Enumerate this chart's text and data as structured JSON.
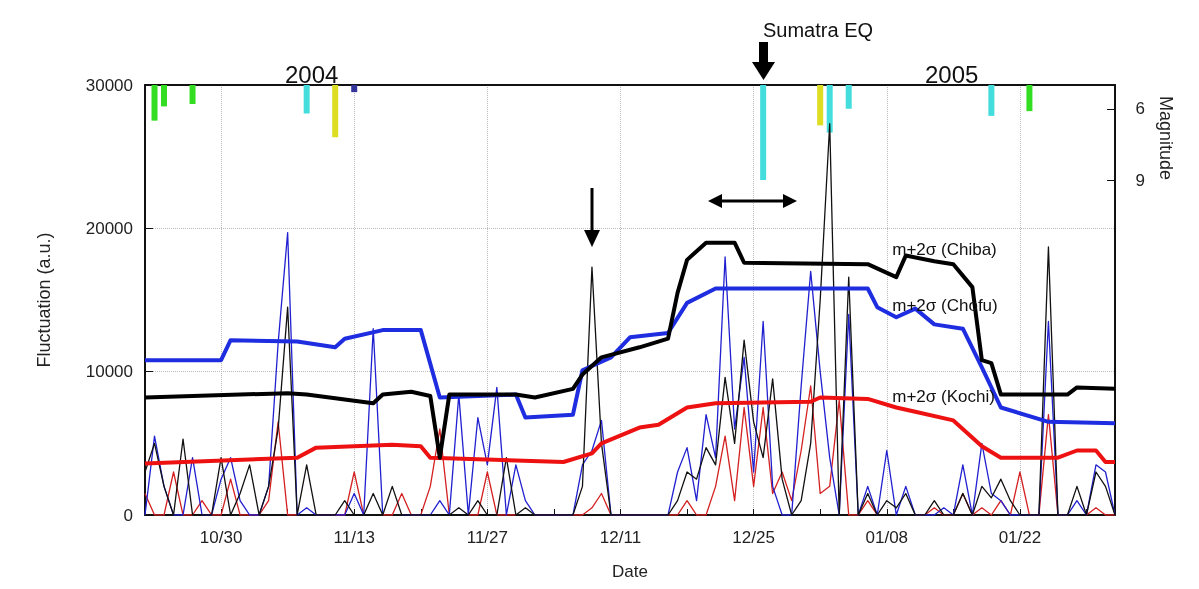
{
  "chart_data": {
    "type": "line",
    "xlabel": "Date",
    "ylabel": "Fluctuation (a.u.)",
    "y2label": "Magnitude",
    "annotations": [
      "2004",
      "2005",
      "Sumatra EQ"
    ],
    "xlim": [
      "2004-10-22",
      "2005-02-01"
    ],
    "xticks": [
      {
        "value": "2004-10-30",
        "label": "10/30"
      },
      {
        "value": "2004-11-06",
        "label": null
      },
      {
        "value": "2004-11-13",
        "label": "11/13"
      },
      {
        "value": "2004-11-20",
        "label": null
      },
      {
        "value": "2004-11-27",
        "label": "11/27"
      },
      {
        "value": "2004-12-04",
        "label": null
      },
      {
        "value": "2004-12-11",
        "label": "12/11"
      },
      {
        "value": "2004-12-18",
        "label": null
      },
      {
        "value": "2004-12-25",
        "label": "12/25"
      },
      {
        "value": "2005-01-01",
        "label": null
      },
      {
        "value": "2005-01-08",
        "label": "01/08"
      },
      {
        "value": "2005-01-15",
        "label": null
      },
      {
        "value": "2005-01-22",
        "label": "01/22"
      },
      {
        "value": "2005-01-29",
        "label": null
      }
    ],
    "ylim": [
      0,
      30000
    ],
    "yticks": [
      0,
      10000,
      20000,
      30000
    ],
    "y2lim": [
      23.1,
      5
    ],
    "y2ticks": [
      6,
      9
    ],
    "grid": true,
    "x": [
      "2004-10-22",
      "2004-10-23",
      "2004-10-24",
      "2004-10-25",
      "2004-10-26",
      "2004-10-27",
      "2004-10-28",
      "2004-10-29",
      "2004-10-30",
      "2004-10-31",
      "2004-11-01",
      "2004-11-02",
      "2004-11-03",
      "2004-11-04",
      "2004-11-05",
      "2004-11-06",
      "2004-11-07",
      "2004-11-08",
      "2004-11-09",
      "2004-11-10",
      "2004-11-11",
      "2004-11-12",
      "2004-11-13",
      "2004-11-14",
      "2004-11-15",
      "2004-11-16",
      "2004-11-17",
      "2004-11-18",
      "2004-11-19",
      "2004-11-20",
      "2004-11-21",
      "2004-11-22",
      "2004-11-23",
      "2004-11-24",
      "2004-11-25",
      "2004-11-26",
      "2004-11-27",
      "2004-11-28",
      "2004-11-29",
      "2004-11-30",
      "2004-12-01",
      "2004-12-02",
      "2004-12-03",
      "2004-12-04",
      "2004-12-05",
      "2004-12-06",
      "2004-12-07",
      "2004-12-08",
      "2004-12-09",
      "2004-12-10",
      "2004-12-11",
      "2004-12-12",
      "2004-12-13",
      "2004-12-14",
      "2004-12-15",
      "2004-12-16",
      "2004-12-17",
      "2004-12-18",
      "2004-12-19",
      "2004-12-20",
      "2004-12-21",
      "2004-12-22",
      "2004-12-23",
      "2004-12-24",
      "2004-12-25",
      "2004-12-26",
      "2004-12-27",
      "2004-12-28",
      "2004-12-29",
      "2004-12-30",
      "2004-12-31",
      "2005-01-01",
      "2005-01-02",
      "2005-01-03",
      "2005-01-04",
      "2005-01-05",
      "2005-01-06",
      "2005-01-07",
      "2005-01-08",
      "2005-01-09",
      "2005-01-10",
      "2005-01-11",
      "2005-01-12",
      "2005-01-13",
      "2005-01-14",
      "2005-01-15",
      "2005-01-16",
      "2005-01-17",
      "2005-01-18",
      "2005-01-19",
      "2005-01-20",
      "2005-01-21",
      "2005-01-22",
      "2005-01-23",
      "2005-01-24",
      "2005-01-25",
      "2005-01-26",
      "2005-01-27",
      "2005-01-28",
      "2005-01-29",
      "2005-01-30",
      "2005-01-31",
      "2005-02-01"
    ],
    "series": [
      {
        "color": "#d42020",
        "values": [
          1500,
          0,
          0,
          3000,
          0,
          0,
          1000,
          0,
          0,
          2500,
          0,
          0,
          0,
          1000,
          6500,
          0,
          0,
          null,
          0,
          0,
          0,
          0,
          3000,
          0,
          null,
          0,
          0,
          1500,
          0,
          0,
          2000,
          6000,
          0,
          null,
          0,
          0,
          3000,
          0,
          0,
          0,
          null,
          0,
          0,
          0,
          0,
          0,
          0,
          500,
          1500,
          0,
          0,
          0,
          0,
          0,
          0,
          0,
          0,
          1000,
          0,
          0,
          2000,
          5500,
          1000,
          7500,
          2000,
          7500,
          1500,
          3000,
          1000,
          4500,
          9000,
          1500,
          2000,
          8000,
          0,
          0,
          1000,
          0,
          null,
          null,
          null,
          0,
          0,
          500,
          0,
          0,
          1500,
          0,
          500,
          0,
          1000,
          0,
          3000,
          0,
          0,
          7000,
          0,
          0,
          null,
          0,
          500,
          0,
          0
        ]
      },
      {
        "color": "#2020d0",
        "values": [
          0,
          5500,
          2000,
          0,
          0,
          4000,
          0,
          0,
          2500,
          4000,
          1000,
          0,
          0,
          2000,
          12000,
          19700,
          0,
          500,
          0,
          0,
          0,
          0,
          1500,
          0,
          13000,
          0,
          null,
          0,
          0,
          0,
          0,
          1000,
          0,
          8400,
          0,
          6800,
          3500,
          8900,
          0,
          3500,
          1000,
          0,
          0,
          0,
          0,
          0,
          3500,
          4500,
          6600,
          0,
          0,
          0,
          0,
          0,
          0,
          0,
          3000,
          4700,
          1000,
          7000,
          4000,
          18000,
          6000,
          11000,
          3000,
          13500,
          2000,
          0,
          0,
          9000,
          17000,
          10000,
          4000,
          0,
          14000,
          0,
          2000,
          0,
          4500,
          0,
          2000,
          0,
          0,
          0,
          500,
          0,
          3500,
          0,
          5000,
          1500,
          1000,
          0,
          0,
          0,
          0,
          13500,
          0,
          0,
          1000,
          0,
          3500,
          3000,
          0
        ]
      },
      {
        "color": "#111111",
        "values": [
          3000,
          5000,
          2000,
          0,
          5300,
          0,
          0,
          0,
          4000,
          0,
          1500,
          3500,
          0,
          2000,
          6000,
          14500,
          0,
          3500,
          0,
          0,
          0,
          1000,
          0,
          0,
          1500,
          0,
          2000,
          0,
          0,
          0,
          0,
          0,
          0,
          500,
          0,
          1000,
          0,
          0,
          4000,
          0,
          500,
          0,
          0,
          0,
          0,
          0,
          2000,
          17300,
          5000,
          0,
          0,
          0,
          0,
          0,
          0,
          0,
          1000,
          3000,
          2500,
          4700,
          3500,
          9600,
          5000,
          12200,
          6500,
          4000,
          9500,
          2500,
          0,
          1000,
          5000,
          15000,
          27300,
          0,
          16600,
          0,
          1500,
          0,
          1000,
          500,
          1500,
          0,
          0,
          1000,
          0,
          0,
          1500,
          0,
          2000,
          1200,
          2500,
          1000,
          0,
          0,
          0,
          18700,
          0,
          0,
          2000,
          0,
          3000,
          2000,
          0
        ]
      },
      {
        "name": "m+2σ (Kochi)",
        "color": "#ee1111",
        "x": [
          "2004-10-22",
          "2004-11-07",
          "2004-11-09",
          "2004-11-17",
          "2004-11-20",
          "2004-11-21",
          "2004-12-05",
          "2004-12-08",
          "2004-12-09",
          "2004-12-13",
          "2004-12-15",
          "2004-12-18",
          "2004-12-21",
          "2004-12-31",
          "2005-01-01",
          "2005-01-06",
          "2005-01-09",
          "2005-01-11",
          "2005-01-15",
          "2005-01-18",
          "2005-01-20",
          "2005-01-26",
          "2005-01-28",
          "2005-01-30",
          "2005-01-31",
          "2005-02-01"
        ],
        "values": [
          3600,
          4000,
          4700,
          4900,
          4800,
          4000,
          3700,
          4300,
          5000,
          6100,
          6300,
          7500,
          7800,
          7900,
          8200,
          8100,
          7500,
          7200,
          6600,
          4800,
          4000,
          4000,
          4500,
          4500,
          3700,
          3700
        ]
      },
      {
        "name": "m+2σ (Chofu)",
        "color": "#1f2de0",
        "x": [
          "2004-10-22",
          "2004-10-30",
          "2004-10-31",
          "2004-11-07",
          "2004-11-11",
          "2004-11-12",
          "2004-11-16",
          "2004-11-20",
          "2004-11-22",
          "2004-11-30",
          "2004-12-01",
          "2004-12-06",
          "2004-12-07",
          "2004-12-10",
          "2004-12-12",
          "2004-12-16",
          "2004-12-18",
          "2004-12-21",
          "2005-01-06",
          "2005-01-07",
          "2005-01-09",
          "2005-01-11",
          "2005-01-13",
          "2005-01-16",
          "2005-01-18",
          "2005-01-20",
          "2005-01-25",
          "2005-02-01"
        ],
        "values": [
          10800,
          10800,
          12200,
          12100,
          11700,
          12300,
          12900,
          12900,
          8200,
          8400,
          6800,
          7000,
          10100,
          11000,
          12400,
          12700,
          14800,
          15800,
          15800,
          14500,
          13800,
          14400,
          13300,
          13000,
          10300,
          7500,
          6500,
          6400
        ]
      },
      {
        "name": "m+2σ (Chiba)",
        "color": "#000000",
        "x": [
          "2004-10-22",
          "2004-11-06",
          "2004-11-08",
          "2004-11-15",
          "2004-11-16",
          "2004-11-19",
          "2004-11-21",
          "2004-11-22",
          "2004-11-23",
          "2004-11-30",
          "2004-12-02",
          "2004-12-06",
          "2004-12-07",
          "2004-12-09",
          "2004-12-13",
          "2004-12-16",
          "2004-12-17",
          "2004-12-18",
          "2004-12-20",
          "2004-12-23",
          "2004-12-24",
          "2005-01-06",
          "2005-01-09",
          "2005-01-10",
          "2005-01-13",
          "2005-01-15",
          "2005-01-17",
          "2005-01-18",
          "2005-01-19",
          "2005-01-20",
          "2005-01-27",
          "2005-01-28",
          "2005-02-01"
        ],
        "values": [
          8200,
          8500,
          8400,
          7800,
          8400,
          8600,
          8300,
          4000,
          8400,
          8400,
          8200,
          8800,
          9800,
          11000,
          11700,
          12300,
          15500,
          17800,
          19000,
          19000,
          17600,
          17500,
          16600,
          18100,
          17700,
          17500,
          15900,
          10800,
          10600,
          8400,
          8400,
          8900,
          8800
        ]
      },
      {
        "type": "bar",
        "axis": "y2",
        "x": [
          "2004-10-23",
          "2004-10-24",
          "2004-10-27",
          "2004-11-08",
          "2004-11-11",
          "2004-11-13",
          "2004-12-26",
          "2005-01-01",
          "2005-01-02",
          "2005-01-04",
          "2005-01-19",
          "2005-01-23"
        ],
        "values": [
          6.5,
          5.9,
          5.8,
          6.2,
          7.2,
          5.3,
          9.0,
          6.7,
          7.0,
          6.0,
          6.3,
          6.1
        ],
        "colors": [
          "#33dd22",
          "#33dd22",
          "#33dd22",
          "#44dddd",
          "#dddd22",
          "#333399",
          "#44dddd",
          "#dddd22",
          "#44dddd",
          "#44dddd",
          "#44dddd",
          "#33dd22"
        ]
      }
    ]
  }
}
